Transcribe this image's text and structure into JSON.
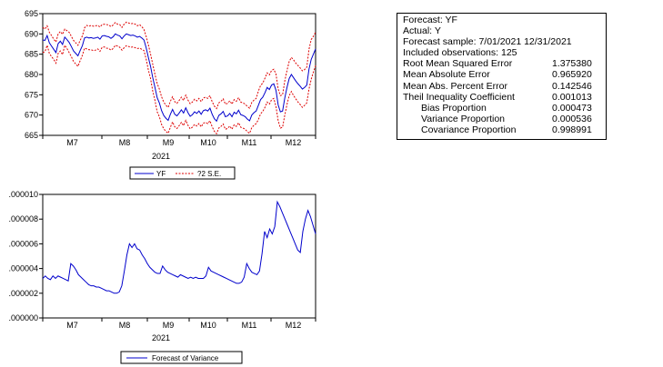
{
  "stats_box": {
    "header_lines": [
      "Forecast: YF",
      "Actual: Y",
      "Forecast sample: 7/01/2021 12/31/2021",
      "Included observations: 125"
    ],
    "rows": [
      {
        "label": "Root Mean Squared Error",
        "value": "1.375380",
        "indent": false
      },
      {
        "label": "Mean Absolute Error",
        "value": "0.965920",
        "indent": false
      },
      {
        "label": "Mean Abs. Percent Error",
        "value": "0.142546",
        "indent": false
      },
      {
        "label": "Theil Inequality Coefficient",
        "value": "0.001013",
        "indent": false
      },
      {
        "label": "Bias Proportion",
        "value": "0.000473",
        "indent": true
      },
      {
        "label": "Variance Proportion",
        "value": "0.000536",
        "indent": true
      },
      {
        "label": "Covariance Proportion",
        "value": "0.998991",
        "indent": true
      }
    ]
  },
  "chart_data": [
    {
      "type": "line",
      "title": "",
      "xlabel": "2021",
      "ylabel": "",
      "ylim": [
        665,
        695
      ],
      "y_ticks": [
        "665",
        "670",
        "675",
        "680",
        "685",
        "690",
        "695"
      ],
      "x_ticks": [
        "M7",
        "M8",
        "M9",
        "M10",
        "M11",
        "M12"
      ],
      "x_year": "2021",
      "grid": false,
      "legend_position": "bottom-center",
      "series": [
        {
          "name": "YF",
          "color": "#0000cc",
          "style": "solid",
          "values": [
            688.5,
            688.4,
            689.6,
            687.8,
            687.0,
            686.2,
            685.4,
            687.6,
            688.2,
            687.4,
            689.2,
            688.6,
            687.9,
            686.9,
            685.8,
            685.2,
            684.6,
            685.9,
            687.1,
            689.0,
            689.2,
            689.0,
            689.1,
            688.9,
            689.0,
            689.2,
            688.7,
            689.5,
            689.6,
            689.4,
            689.3,
            688.9,
            689.3,
            690.0,
            689.7,
            689.5,
            688.8,
            689.5,
            690.0,
            689.8,
            689.6,
            689.7,
            689.5,
            689.2,
            689.4,
            689.0,
            688.5,
            686.6,
            684.2,
            682.0,
            679.2,
            676.8,
            674.3,
            673.0,
            671.1,
            669.9,
            669.2,
            668.7,
            670.2,
            671.4,
            670.2,
            669.8,
            670.5,
            671.3,
            670.5,
            671.8,
            670.6,
            669.7,
            670.1,
            670.8,
            670.4,
            671.0,
            670.2,
            671.1,
            671.3,
            671.0,
            671.7,
            670.2,
            669.1,
            668.5,
            669.9,
            670.3,
            670.9,
            669.6,
            669.8,
            670.4,
            669.6,
            670.7,
            670.3,
            671.2,
            670.1,
            669.9,
            669.6,
            669.0,
            668.6,
            670.0,
            670.6,
            671.0,
            672.4,
            673.8,
            674.4,
            675.5,
            676.8,
            676.3,
            677.4,
            677.7,
            676.1,
            672.5,
            670.8,
            671.0,
            674.2,
            676.8,
            679.0,
            680.0,
            679.2,
            678.4,
            677.7,
            677.1,
            676.4,
            676.8,
            677.4,
            681.3,
            683.7,
            685.0,
            686.3
          ]
        },
        {
          "name": "?2 S.E.",
          "color": "#dd0000",
          "style": "dashed",
          "upper_values": [
            691.6,
            691.2,
            692.0,
            690.4,
            689.6,
            688.7,
            688.0,
            690.0,
            690.6,
            689.9,
            691.2,
            690.8,
            690.4,
            689.4,
            688.4,
            687.8,
            687.2,
            688.4,
            689.5,
            691.5,
            692.1,
            691.9,
            692.1,
            691.9,
            692.0,
            692.1,
            691.7,
            692.3,
            692.4,
            692.3,
            692.2,
            691.8,
            692.2,
            692.8,
            692.4,
            692.3,
            691.6,
            692.4,
            692.9,
            692.7,
            692.5,
            692.6,
            692.4,
            692.0,
            692.3,
            691.8,
            691.1,
            689.4,
            687.3,
            685.0,
            682.5,
            680.0,
            677.8,
            676.4,
            674.5,
            673.2,
            672.4,
            671.9,
            673.4,
            674.5,
            673.3,
            672.9,
            673.6,
            674.4,
            673.6,
            674.9,
            673.7,
            672.8,
            673.2,
            673.9,
            673.5,
            674.1,
            673.3,
            674.2,
            674.4,
            674.1,
            674.8,
            673.3,
            672.2,
            671.6,
            673.0,
            673.4,
            674.0,
            672.7,
            672.9,
            673.5,
            672.7,
            673.8,
            673.4,
            674.3,
            673.2,
            673.0,
            672.7,
            672.1,
            671.7,
            673.1,
            673.7,
            674.1,
            675.9,
            677.3,
            677.9,
            679.1,
            680.4,
            679.9,
            681.0,
            681.3,
            680.1,
            676.4,
            674.8,
            675.0,
            678.4,
            681.0,
            683.2,
            684.2,
            683.6,
            682.8,
            682.2,
            681.6,
            680.9,
            681.2,
            681.8,
            686.2,
            688.6,
            689.4,
            690.4
          ],
          "lower_values": [
            685.4,
            685.6,
            687.2,
            685.2,
            684.4,
            683.7,
            682.8,
            685.2,
            685.8,
            684.9,
            687.2,
            686.4,
            685.4,
            684.4,
            683.2,
            682.6,
            682.0,
            683.4,
            684.7,
            686.5,
            686.3,
            686.1,
            686.1,
            685.9,
            686.0,
            686.3,
            685.7,
            686.7,
            686.8,
            686.5,
            686.4,
            686.0,
            686.4,
            687.2,
            687.0,
            686.7,
            686.0,
            686.6,
            687.1,
            686.9,
            686.7,
            686.8,
            686.6,
            686.4,
            686.5,
            686.2,
            685.9,
            683.8,
            681.1,
            679.0,
            675.9,
            673.6,
            670.8,
            669.6,
            667.7,
            666.6,
            666.0,
            665.5,
            667.0,
            668.3,
            667.1,
            666.7,
            667.4,
            668.2,
            667.4,
            668.7,
            667.5,
            666.6,
            667.0,
            667.7,
            667.3,
            667.9,
            667.1,
            668.0,
            668.2,
            667.9,
            668.6,
            667.1,
            666.0,
            665.4,
            666.8,
            667.2,
            667.8,
            666.5,
            666.7,
            667.3,
            666.5,
            667.6,
            667.2,
            668.1,
            667.0,
            666.8,
            666.5,
            665.9,
            665.5,
            666.9,
            667.5,
            667.9,
            668.9,
            670.3,
            670.9,
            671.9,
            673.2,
            672.7,
            673.8,
            674.1,
            672.1,
            668.6,
            666.8,
            667.0,
            670.0,
            672.6,
            674.8,
            675.8,
            674.8,
            674.0,
            673.2,
            672.6,
            671.9,
            672.4,
            673.0,
            676.4,
            678.8,
            680.6,
            682.2
          ]
        }
      ]
    },
    {
      "type": "line",
      "title": "",
      "xlabel": "2021",
      "ylabel": "",
      "ylim": [
        0,
        1e-05
      ],
      "y_ticks": [
        ".000000",
        ".000002",
        ".000004",
        ".000006",
        ".000008",
        ".000010"
      ],
      "x_ticks": [
        "M7",
        "M8",
        "M9",
        "M10",
        "M11",
        "M12"
      ],
      "x_year": "2021",
      "grid": false,
      "legend_position": "bottom-center",
      "series": [
        {
          "name": "Forecast of Variance",
          "color": "#0000cc",
          "style": "solid",
          "values": [
            3.2e-06,
            3.4e-06,
            3.2e-06,
            3.1e-06,
            3.4e-06,
            3.2e-06,
            3.4e-06,
            3.3e-06,
            3.2e-06,
            3.1e-06,
            3e-06,
            4.4e-06,
            4.2e-06,
            3.9e-06,
            3.5e-06,
            3.3e-06,
            3.1e-06,
            2.9e-06,
            2.7e-06,
            2.6e-06,
            2.6e-06,
            2.5e-06,
            2.5e-06,
            2.4e-06,
            2.3e-06,
            2.2e-06,
            2.2e-06,
            2.1e-06,
            2e-06,
            2e-06,
            2.1e-06,
            2.6e-06,
            3.8e-06,
            5.1e-06,
            6e-06,
            5.7e-06,
            6e-06,
            5.6e-06,
            5.5e-06,
            5.1e-06,
            4.8e-06,
            4.4e-06,
            4.1e-06,
            3.9e-06,
            3.7e-06,
            3.6e-06,
            3.6e-06,
            4.2e-06,
            3.9e-06,
            3.7e-06,
            3.6e-06,
            3.5e-06,
            3.4e-06,
            3.3e-06,
            3.5e-06,
            3.4e-06,
            3.3e-06,
            3.2e-06,
            3.3e-06,
            3.2e-06,
            3.3e-06,
            3.2e-06,
            3.2e-06,
            3.2e-06,
            3.4e-06,
            4.1e-06,
            3.8e-06,
            3.7e-06,
            3.6e-06,
            3.5e-06,
            3.4e-06,
            3.3e-06,
            3.2e-06,
            3.1e-06,
            3e-06,
            2.9e-06,
            2.8e-06,
            2.8e-06,
            2.9e-06,
            3.3e-06,
            4.4e-06,
            4e-06,
            3.7e-06,
            3.6e-06,
            3.5e-06,
            3.8e-06,
            5.2e-06,
            7e-06,
            6.5e-06,
            7.2e-06,
            6.8e-06,
            7.4e-06,
            9.4e-06,
            9e-06,
            8.5e-06,
            8e-06,
            7.5e-06,
            7e-06,
            6.5e-06,
            6e-06,
            5.5e-06,
            5.3e-06,
            7e-06,
            8e-06,
            8.7e-06,
            8.2e-06,
            7.5e-06,
            6.8e-06
          ]
        }
      ]
    }
  ]
}
